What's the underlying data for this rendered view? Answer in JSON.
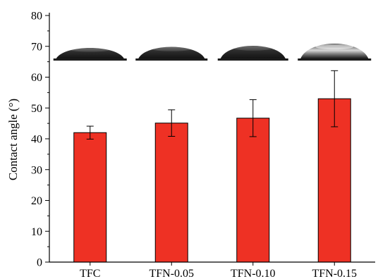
{
  "chart_data": {
    "type": "bar",
    "title": "",
    "xlabel": "",
    "ylabel": "Contact angle (°)",
    "ylim": [
      0,
      80
    ],
    "yticks": [
      0,
      10,
      20,
      30,
      40,
      50,
      60,
      70,
      80
    ],
    "categories": [
      "TFC",
      "TFN-0.05",
      "TFN-0.10",
      "TFN-0.15"
    ],
    "values": [
      42,
      45.1,
      46.7,
      53
    ],
    "errors": [
      2.1,
      4.3,
      6.0,
      9.1
    ],
    "bar_color": "#ee3124",
    "inset_images": [
      "water-droplet",
      "water-droplet",
      "water-droplet",
      "water-droplet"
    ],
    "grid": false,
    "legend": "none"
  }
}
